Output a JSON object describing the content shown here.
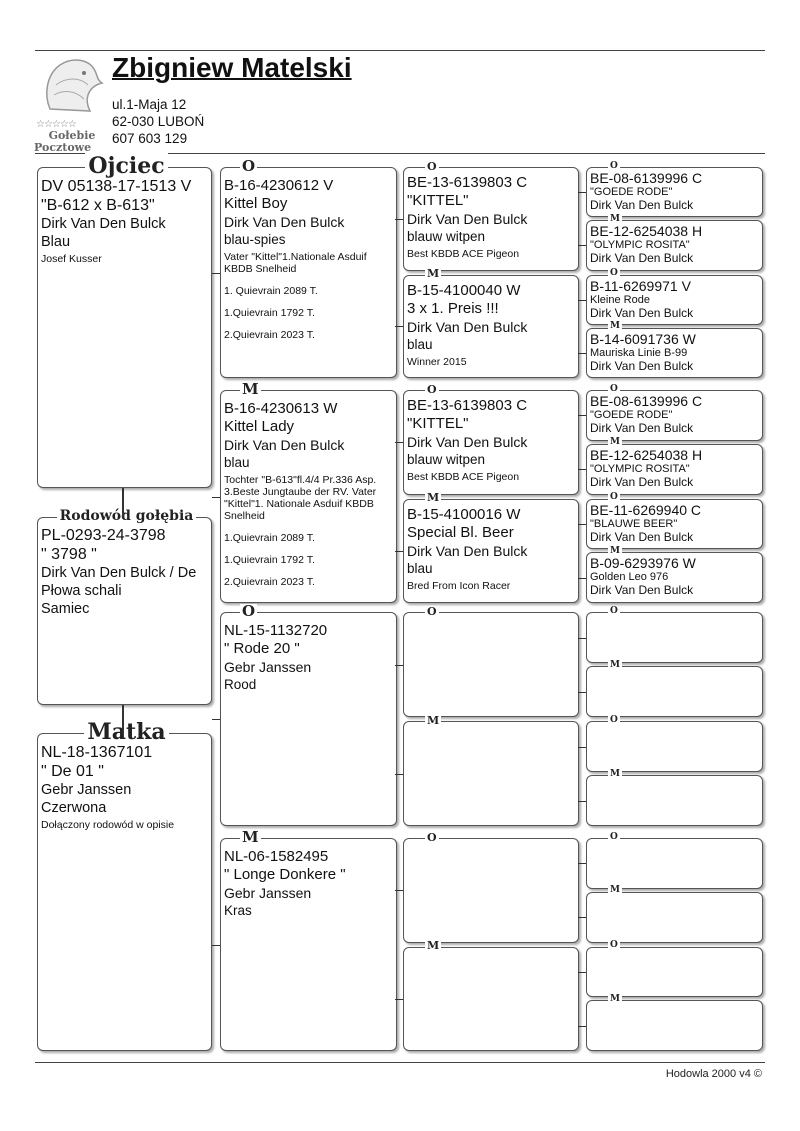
{
  "header": {
    "owner_name": "Zbigniew Matelski",
    "address_lines": [
      "ul.1-Maja 12",
      "62-030 LUBOŃ",
      "607 603 129"
    ],
    "logo_text": [
      "☆☆☆☆☆",
      "Gołebie",
      "Pocztowe"
    ]
  },
  "footer": {
    "text": "Hodowla 2000 v4 ©"
  },
  "col1": [
    {
      "label": "Ojciec",
      "lines": [
        "DV 05138-17-1513 V",
        "\"B-612 x B-613\"",
        "Dirk Van Den Bulck",
        "Blau"
      ],
      "notes": [
        "Josef Kusser"
      ]
    },
    {
      "label": "Rodowód gołębia",
      "lines": [
        "PL-0293-24-3798",
        "\" 3798 \"",
        "Dirk Van Den Bulck / De",
        "Płowa schali",
        "Samiec"
      ],
      "notes": []
    },
    {
      "label": "Matka",
      "lines": [
        "NL-18-1367101",
        "\" De 01 \"",
        "Gebr Janssen",
        "Czerwona"
      ],
      "notes": [
        "Dołączony rodowód w opisie"
      ]
    }
  ],
  "col2": [
    {
      "label": "O",
      "lines": [
        "B-16-4230612 V",
        "Kittel Boy",
        "Dirk Van Den Bulck",
        "blau-spies"
      ],
      "notes": [
        "Vater \"Kittel\"1.Nationale Asduif KBDB Snelheid",
        "1. Quievrain 2089 T.",
        "1.Quievrain 1792 T.",
        "2.Quievrain 2023 T."
      ]
    },
    {
      "label": "M",
      "lines": [
        "B-16-4230613 W",
        "Kittel Lady",
        "Dirk Van Den Bulck",
        "blau"
      ],
      "notes": [
        "Tochter \"B-613\"fl.4/4 Pr.336 Asp. 3.Beste Jungtaube der RV. Vater \"Kittel\"1. Nationale Asduif KBDB Snelheid",
        "1.Quievrain 2089 T.",
        "1.Quievrain 1792 T.",
        "2.Quievrain 2023 T."
      ]
    },
    {
      "label": "O",
      "lines": [
        "NL-15-1132720",
        "\" Rode 20 \"",
        "Gebr Janssen",
        "Rood"
      ],
      "notes": []
    },
    {
      "label": "M",
      "lines": [
        "NL-06-1582495",
        "\" Longe Donkere \"",
        "Gebr Janssen",
        "Kras"
      ],
      "notes": []
    }
  ],
  "col3": [
    {
      "label": "O",
      "lines": [
        "BE-13-6139803 C",
        "\"KITTEL\"",
        "Dirk Van Den Bulck",
        "blauw witpen"
      ],
      "notes": [
        "Best KBDB ACE Pigeon"
      ]
    },
    {
      "label": "M",
      "lines": [
        "B-15-4100040 W",
        "3 x 1. Preis !!!",
        "Dirk Van Den Bulck",
        "blau"
      ],
      "notes": [
        "Winner 2015"
      ]
    },
    {
      "label": "O",
      "lines": [
        "BE-13-6139803 C",
        "\"KITTEL\"",
        "Dirk Van Den Bulck",
        "blauw witpen"
      ],
      "notes": [
        "Best KBDB ACE Pigeon"
      ]
    },
    {
      "label": "M",
      "lines": [
        "B-15-4100016 W",
        "Special Bl. Beer",
        "Dirk Van Den Bulck",
        "blau"
      ],
      "notes": [
        "Bred From Icon Racer"
      ]
    },
    {
      "label": "O",
      "lines": [],
      "notes": []
    },
    {
      "label": "M",
      "lines": [],
      "notes": []
    },
    {
      "label": "O",
      "lines": [],
      "notes": []
    },
    {
      "label": "M",
      "lines": [],
      "notes": []
    }
  ],
  "col4": [
    {
      "label": "O",
      "lines": [
        "BE-08-6139996 C",
        "\"GOEDE RODE\"",
        "Dirk Van Den Bulck"
      ]
    },
    {
      "label": "M",
      "lines": [
        "BE-12-6254038 H",
        "\"OLYMPIC ROSITA\"",
        "Dirk Van Den Bulck"
      ]
    },
    {
      "label": "O",
      "lines": [
        "B-11-6269971 V",
        "Kleine Rode",
        "Dirk Van Den Bulck"
      ]
    },
    {
      "label": "M",
      "lines": [
        "B-14-6091736 W",
        "Mauriska Linie B-99",
        "Dirk Van Den Bulck"
      ]
    },
    {
      "label": "O",
      "lines": [
        "BE-08-6139996 C",
        "\"GOEDE RODE\"",
        "Dirk Van Den Bulck"
      ]
    },
    {
      "label": "M",
      "lines": [
        "BE-12-6254038 H",
        "\"OLYMPIC ROSITA\"",
        "Dirk Van Den Bulck"
      ]
    },
    {
      "label": "O",
      "lines": [
        "BE-11-6269940 C",
        "\"BLAUWE BEER\"",
        "Dirk Van Den Bulck"
      ]
    },
    {
      "label": "M",
      "lines": [
        "B-09-6293976 W",
        "Golden Leo 976",
        "Dirk Van Den Bulck"
      ]
    },
    {
      "label": "O",
      "lines": []
    },
    {
      "label": "M",
      "lines": []
    },
    {
      "label": "O",
      "lines": []
    },
    {
      "label": "M",
      "lines": []
    },
    {
      "label": "O",
      "lines": []
    },
    {
      "label": "M",
      "lines": []
    },
    {
      "label": "O",
      "lines": []
    },
    {
      "label": "M",
      "lines": []
    }
  ]
}
